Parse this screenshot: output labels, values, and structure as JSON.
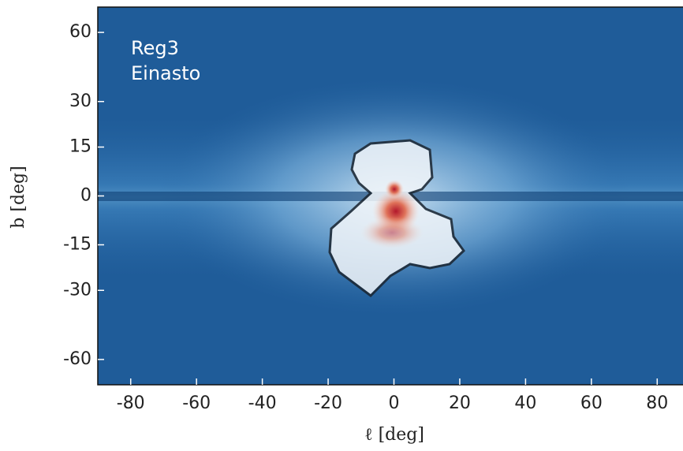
{
  "chart_data": {
    "type": "heatmap",
    "xlabel": "ℓ [deg]",
    "ylabel": "b [deg]",
    "annotations": [
      "Reg3",
      "Einasto"
    ],
    "xlim": [
      -90,
      90
    ],
    "ylim": [
      -90,
      90
    ],
    "yscale": "sin",
    "xticks": [
      -80,
      -60,
      -40,
      -20,
      0,
      20,
      40,
      60,
      80
    ],
    "yticks": [
      -60,
      -30,
      -15,
      0,
      15,
      30,
      60
    ]
  }
}
